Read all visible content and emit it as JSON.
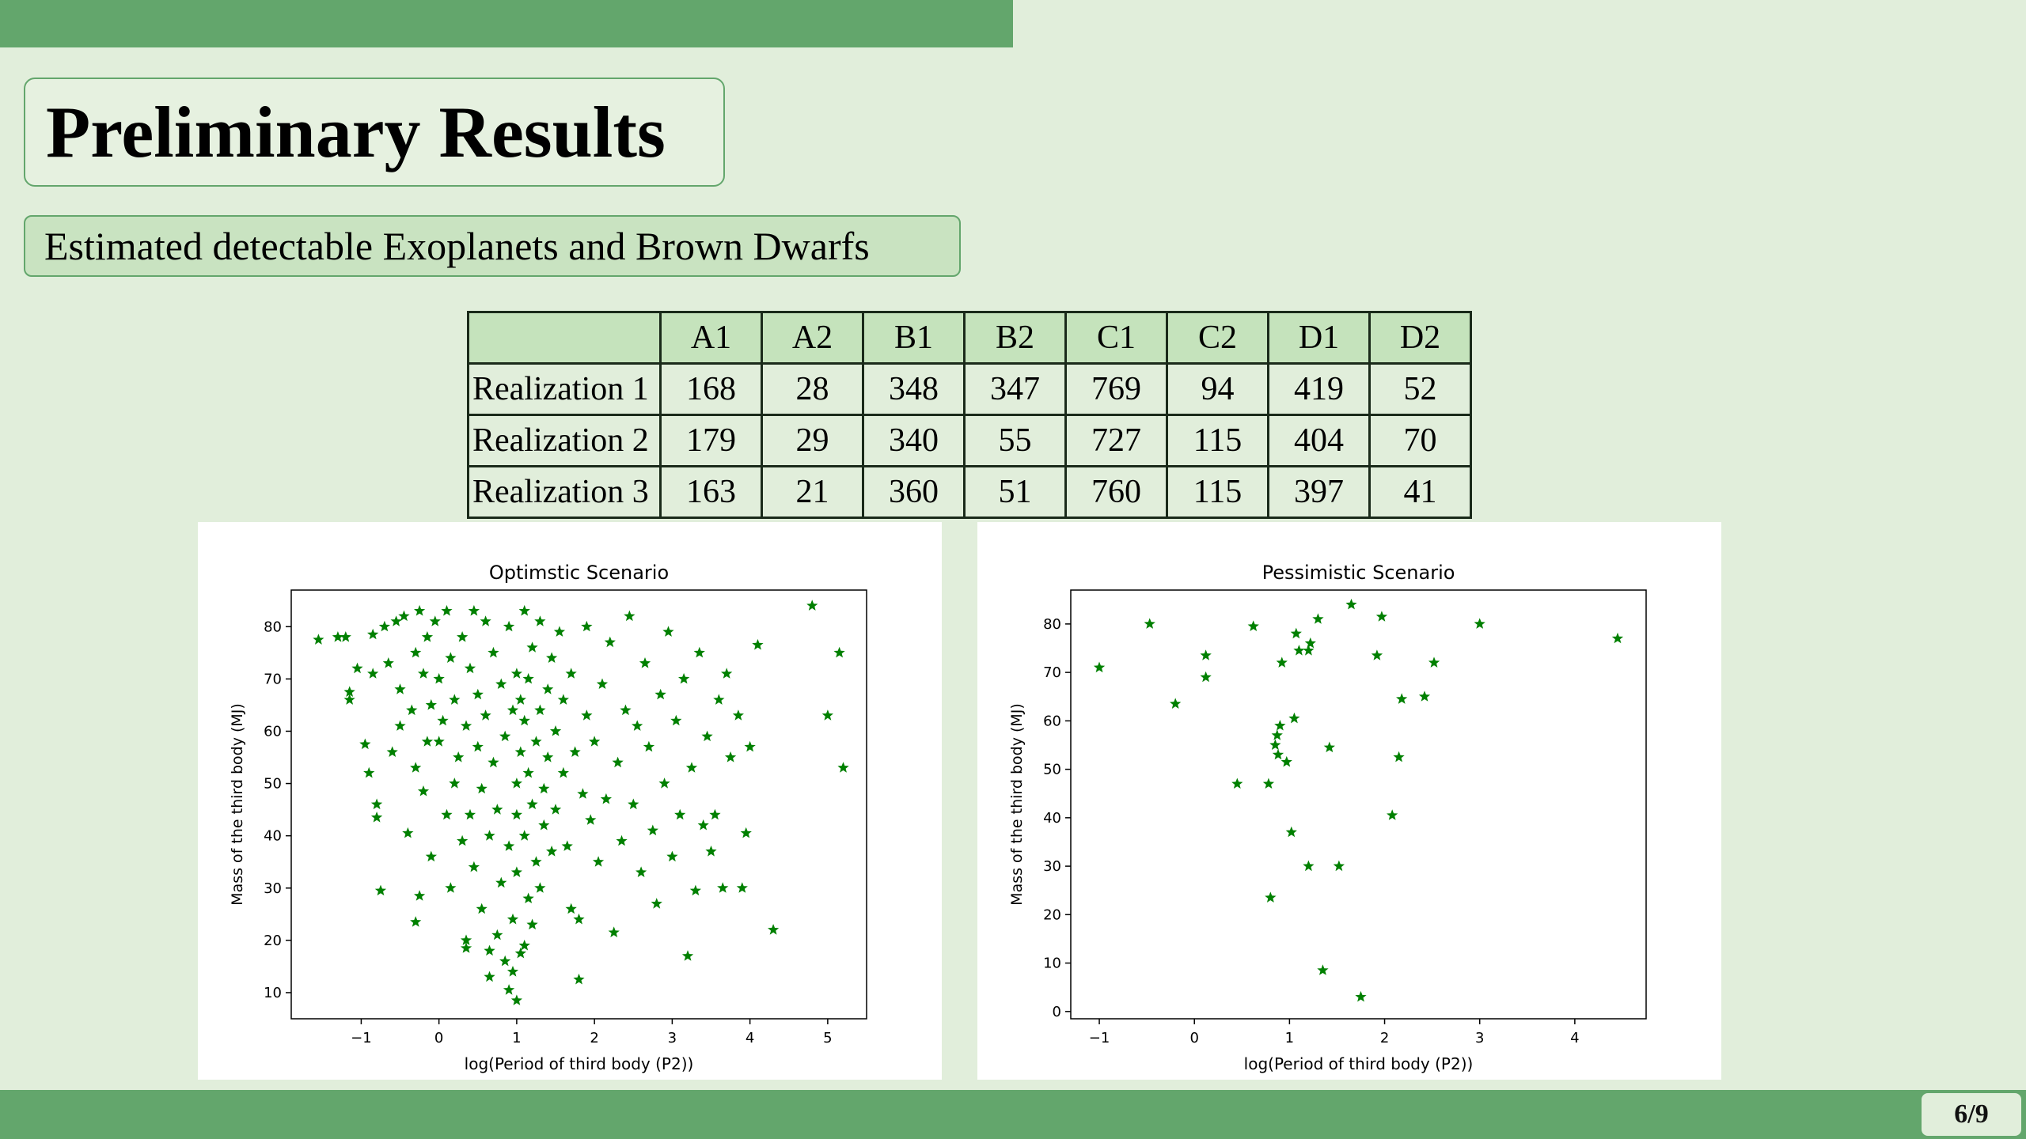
{
  "slide": {
    "title": "Preliminary Results",
    "subtitle": "Estimated detectable Exoplanets and Brown Dwarfs",
    "page_number": "6/9",
    "colors": {
      "bar": "#63a66c",
      "background": "#e1eedb",
      "table_header": "#c5e3bc",
      "marker": "#008000"
    }
  },
  "table": {
    "headers": [
      "",
      "A1",
      "A2",
      "B1",
      "B2",
      "C1",
      "C2",
      "D1",
      "D2"
    ],
    "rows": [
      {
        "label": "Realization 1",
        "values": [
          "168",
          "28",
          "348",
          "347",
          "769",
          "94",
          "419",
          "52"
        ]
      },
      {
        "label": "Realization 2",
        "values": [
          "179",
          "29",
          "340",
          "55",
          "727",
          "115",
          "404",
          "70"
        ]
      },
      {
        "label": "Realization 3",
        "values": [
          "163",
          "21",
          "360",
          "51",
          "760",
          "115",
          "397",
          "41"
        ]
      }
    ]
  },
  "chart_data": [
    {
      "type": "scatter",
      "title": "Optimstic Scenario",
      "xlabel": "log(Period of third body (P2))",
      "ylabel": "Mass of the third body (MJ)",
      "xlim": [
        -1.9,
        5.5
      ],
      "ylim": [
        5,
        87
      ],
      "xticks": [
        "-1",
        "0",
        "1",
        "2",
        "3",
        "4",
        "5"
      ],
      "yticks": [
        "10",
        "20",
        "30",
        "40",
        "50",
        "60",
        "70",
        "80"
      ],
      "marker": "star",
      "color": "#008000",
      "grid": false,
      "points": [
        [
          -1.55,
          77.5
        ],
        [
          -1.3,
          78
        ],
        [
          -1.2,
          78
        ],
        [
          -1.15,
          66
        ],
        [
          -1.15,
          67.5
        ],
        [
          -1.05,
          72
        ],
        [
          -0.95,
          57.5
        ],
        [
          -0.9,
          52
        ],
        [
          -0.85,
          78.5
        ],
        [
          -0.85,
          71
        ],
        [
          -0.8,
          46
        ],
        [
          -0.8,
          43.5
        ],
        [
          -0.75,
          29.5
        ],
        [
          -0.7,
          80
        ],
        [
          -0.65,
          73
        ],
        [
          -0.6,
          56
        ],
        [
          -0.55,
          81
        ],
        [
          -0.5,
          61
        ],
        [
          -0.5,
          68
        ],
        [
          -0.45,
          82
        ],
        [
          -0.4,
          40.5
        ],
        [
          -0.35,
          64
        ],
        [
          -0.3,
          53
        ],
        [
          -0.3,
          75
        ],
        [
          -0.3,
          23.5
        ],
        [
          -0.25,
          83
        ],
        [
          -0.25,
          28.5
        ],
        [
          -0.2,
          48.5
        ],
        [
          -0.2,
          71
        ],
        [
          -0.15,
          58
        ],
        [
          -0.15,
          78
        ],
        [
          -0.1,
          36
        ],
        [
          -0.1,
          65
        ],
        [
          -0.05,
          81
        ],
        [
          0.0,
          58
        ],
        [
          0.0,
          70
        ],
        [
          0.05,
          62
        ],
        [
          0.1,
          83
        ],
        [
          0.1,
          44
        ],
        [
          0.15,
          30
        ],
        [
          0.15,
          74
        ],
        [
          0.2,
          50
        ],
        [
          0.2,
          66
        ],
        [
          0.25,
          55
        ],
        [
          0.3,
          78
        ],
        [
          0.3,
          39
        ],
        [
          0.35,
          20
        ],
        [
          0.35,
          18.5
        ],
        [
          0.35,
          61
        ],
        [
          0.4,
          44
        ],
        [
          0.4,
          72
        ],
        [
          0.45,
          34
        ],
        [
          0.45,
          83
        ],
        [
          0.5,
          57
        ],
        [
          0.5,
          67
        ],
        [
          0.55,
          26
        ],
        [
          0.55,
          49
        ],
        [
          0.6,
          81
        ],
        [
          0.6,
          63
        ],
        [
          0.65,
          13
        ],
        [
          0.65,
          40
        ],
        [
          0.65,
          18
        ],
        [
          0.7,
          54
        ],
        [
          0.7,
          75
        ],
        [
          0.75,
          21
        ],
        [
          0.75,
          45
        ],
        [
          0.8,
          69
        ],
        [
          0.8,
          31
        ],
        [
          0.85,
          16
        ],
        [
          0.85,
          59
        ],
        [
          0.9,
          10.5
        ],
        [
          0.9,
          38
        ],
        [
          0.9,
          80
        ],
        [
          0.95,
          14
        ],
        [
          0.95,
          64
        ],
        [
          0.95,
          24
        ],
        [
          1.0,
          8.5
        ],
        [
          1.0,
          50
        ],
        [
          1.0,
          71
        ],
        [
          1.0,
          33
        ],
        [
          1.0,
          44
        ],
        [
          1.05,
          17.5
        ],
        [
          1.05,
          56
        ],
        [
          1.05,
          66
        ],
        [
          1.1,
          19
        ],
        [
          1.1,
          40
        ],
        [
          1.1,
          62
        ],
        [
          1.1,
          83
        ],
        [
          1.15,
          28
        ],
        [
          1.15,
          52
        ],
        [
          1.15,
          70
        ],
        [
          1.2,
          23
        ],
        [
          1.2,
          46
        ],
        [
          1.2,
          76
        ],
        [
          1.25,
          35
        ],
        [
          1.25,
          58
        ],
        [
          1.3,
          30
        ],
        [
          1.3,
          64
        ],
        [
          1.3,
          81
        ],
        [
          1.35,
          42
        ],
        [
          1.35,
          49
        ],
        [
          1.4,
          68
        ],
        [
          1.4,
          55
        ],
        [
          1.45,
          37
        ],
        [
          1.45,
          74
        ],
        [
          1.5,
          60
        ],
        [
          1.5,
          45
        ],
        [
          1.55,
          79
        ],
        [
          1.6,
          52
        ],
        [
          1.6,
          66
        ],
        [
          1.65,
          38
        ],
        [
          1.7,
          71
        ],
        [
          1.7,
          26
        ],
        [
          1.75,
          56
        ],
        [
          1.8,
          24
        ],
        [
          1.8,
          12.5
        ],
        [
          1.85,
          48
        ],
        [
          1.9,
          63
        ],
        [
          1.9,
          80
        ],
        [
          1.95,
          43
        ],
        [
          2.0,
          58
        ],
        [
          2.05,
          35
        ],
        [
          2.1,
          69
        ],
        [
          2.15,
          47
        ],
        [
          2.2,
          77
        ],
        [
          2.25,
          21.5
        ],
        [
          2.3,
          54
        ],
        [
          2.35,
          39
        ],
        [
          2.4,
          64
        ],
        [
          2.45,
          82
        ],
        [
          2.5,
          46
        ],
        [
          2.55,
          61
        ],
        [
          2.6,
          33
        ],
        [
          2.65,
          73
        ],
        [
          2.7,
          57
        ],
        [
          2.75,
          41
        ],
        [
          2.8,
          27
        ],
        [
          2.85,
          67
        ],
        [
          2.9,
          50
        ],
        [
          2.95,
          79
        ],
        [
          3.0,
          36
        ],
        [
          3.05,
          62
        ],
        [
          3.1,
          44
        ],
        [
          3.15,
          70
        ],
        [
          3.2,
          17
        ],
        [
          3.25,
          53
        ],
        [
          3.3,
          29.5
        ],
        [
          3.35,
          75
        ],
        [
          3.4,
          42
        ],
        [
          3.45,
          59
        ],
        [
          3.5,
          37
        ],
        [
          3.55,
          44
        ],
        [
          3.6,
          66
        ],
        [
          3.65,
          30
        ],
        [
          3.7,
          71
        ],
        [
          3.75,
          55
        ],
        [
          3.85,
          63
        ],
        [
          3.9,
          30
        ],
        [
          3.95,
          40.5
        ],
        [
          4.0,
          57
        ],
        [
          4.1,
          76.5
        ],
        [
          4.3,
          22
        ],
        [
          4.8,
          84
        ],
        [
          5.0,
          63
        ],
        [
          5.15,
          75
        ],
        [
          5.2,
          53
        ]
      ]
    },
    {
      "type": "scatter",
      "title": "Pessimistic Scenario",
      "xlabel": "log(Period of third body (P2))",
      "ylabel": "Mass of the third body (MJ)",
      "xlim": [
        -1.3,
        4.75
      ],
      "ylim": [
        -1.5,
        87
      ],
      "xticks": [
        "-1",
        "0",
        "1",
        "2",
        "3",
        "4"
      ],
      "yticks": [
        "0",
        "10",
        "20",
        "30",
        "40",
        "50",
        "60",
        "70",
        "80"
      ],
      "marker": "star",
      "color": "#008000",
      "grid": false,
      "points": [
        [
          -1.0,
          71
        ],
        [
          -0.47,
          80
        ],
        [
          -0.2,
          63.5
        ],
        [
          0.12,
          73.5
        ],
        [
          0.12,
          69
        ],
        [
          0.45,
          47
        ],
        [
          0.62,
          79.5
        ],
        [
          0.78,
          47
        ],
        [
          0.8,
          23.5
        ],
        [
          0.85,
          55
        ],
        [
          0.87,
          57
        ],
        [
          0.88,
          53
        ],
        [
          0.9,
          59
        ],
        [
          0.92,
          72
        ],
        [
          0.97,
          51.5
        ],
        [
          1.02,
          37
        ],
        [
          1.05,
          60.5
        ],
        [
          1.07,
          78
        ],
        [
          1.1,
          74.5
        ],
        [
          1.2,
          74.5
        ],
        [
          1.2,
          30
        ],
        [
          1.22,
          76
        ],
        [
          1.3,
          81
        ],
        [
          1.35,
          8.5
        ],
        [
          1.42,
          54.5
        ],
        [
          1.52,
          30
        ],
        [
          1.65,
          84
        ],
        [
          1.75,
          3
        ],
        [
          1.92,
          73.5
        ],
        [
          1.97,
          81.5
        ],
        [
          2.08,
          40.5
        ],
        [
          2.15,
          52.5
        ],
        [
          2.18,
          64.5
        ],
        [
          2.42,
          65
        ],
        [
          2.52,
          72
        ],
        [
          3.0,
          80
        ],
        [
          4.45,
          77
        ]
      ]
    }
  ]
}
